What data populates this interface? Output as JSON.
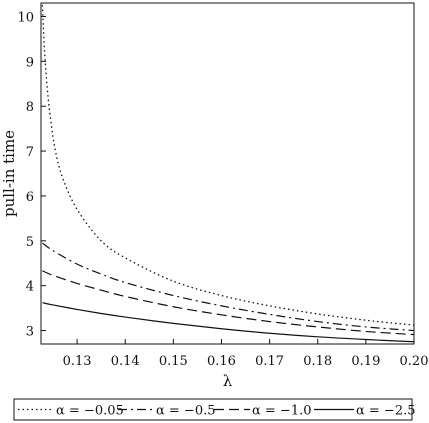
{
  "chart_data": {
    "type": "line",
    "xlabel": "λ",
    "ylabel": "pull-in time",
    "xlim": [
      0.1225,
      0.2
    ],
    "ylim": [
      2.7,
      10.3
    ],
    "x_ticks": [
      0.13,
      0.14,
      0.15,
      0.16,
      0.17,
      0.18,
      0.19,
      0.2
    ],
    "x_tick_labels": [
      "0.13",
      "0.14",
      "0.15",
      "0.16",
      "0.17",
      "0.18",
      "0.19",
      "0.20"
    ],
    "y_ticks": [
      3,
      4,
      5,
      6,
      7,
      8,
      9,
      10
    ],
    "y_tick_labels": [
      "3",
      "4",
      "5",
      "6",
      "7",
      "8",
      "9",
      "10"
    ],
    "grid": false,
    "legend_position": "bottom",
    "series": [
      {
        "name": "α = −0.05",
        "style": "dotted",
        "x": [
          0.1228,
          0.1232,
          0.1238,
          0.1245,
          0.1255,
          0.127,
          0.13,
          0.135,
          0.14,
          0.15,
          0.16,
          0.17,
          0.18,
          0.19,
          0.2
        ],
        "y": [
          10.25,
          9.3,
          8.4,
          7.7,
          7.0,
          6.4,
          5.7,
          5.0,
          4.62,
          4.1,
          3.78,
          3.55,
          3.37,
          3.23,
          3.12
        ]
      },
      {
        "name": "α = −0.5",
        "style": "dashdot",
        "x": [
          0.1228,
          0.125,
          0.13,
          0.135,
          0.14,
          0.15,
          0.16,
          0.17,
          0.18,
          0.19,
          0.2
        ],
        "y": [
          4.95,
          4.78,
          4.48,
          4.26,
          4.07,
          3.78,
          3.55,
          3.36,
          3.2,
          3.08,
          3.0
        ]
      },
      {
        "name": "α = −1.0",
        "style": "dashed",
        "x": [
          0.1228,
          0.125,
          0.13,
          0.135,
          0.14,
          0.15,
          0.16,
          0.17,
          0.18,
          0.19,
          0.2
        ],
        "y": [
          4.33,
          4.23,
          4.05,
          3.9,
          3.76,
          3.53,
          3.35,
          3.2,
          3.08,
          2.98,
          2.91
        ]
      },
      {
        "name": "α = −2.5",
        "style": "solid",
        "x": [
          0.1228,
          0.125,
          0.13,
          0.135,
          0.14,
          0.15,
          0.16,
          0.17,
          0.18,
          0.19,
          0.2
        ],
        "y": [
          3.62,
          3.57,
          3.47,
          3.38,
          3.3,
          3.16,
          3.04,
          2.94,
          2.86,
          2.8,
          2.75
        ]
      }
    ]
  }
}
